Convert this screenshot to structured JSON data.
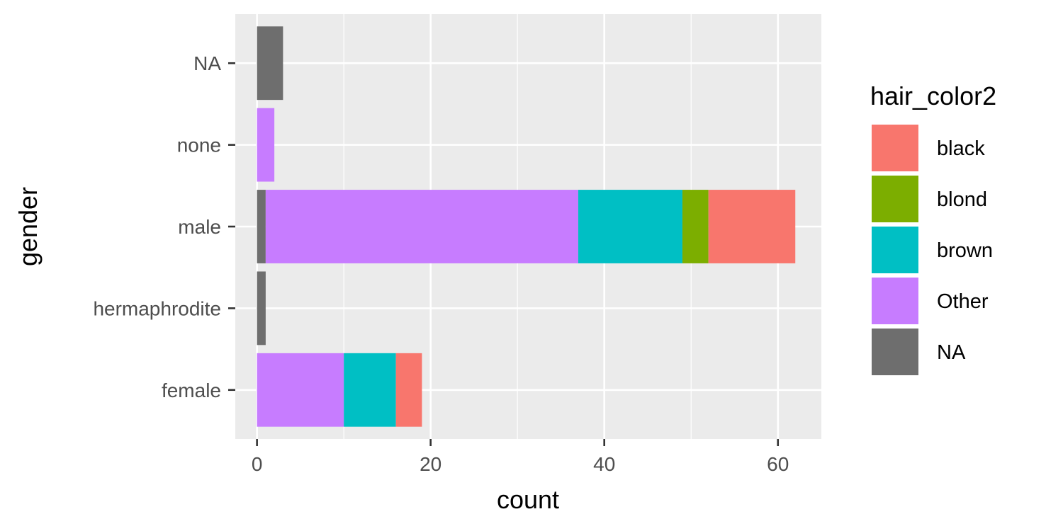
{
  "chart_data": {
    "type": "bar",
    "orientation": "horizontal",
    "stacked": true,
    "categories": [
      "female",
      "hermaphrodite",
      "male",
      "none",
      "NA"
    ],
    "xlabel": "count",
    "ylabel": "gender",
    "xlim": [
      -2.5,
      65
    ],
    "x_ticks": [
      0,
      20,
      40,
      60
    ],
    "grid": true,
    "legend": {
      "title": "hair_color2",
      "position": "right",
      "entries": [
        "black",
        "blond",
        "brown",
        "Other",
        "NA"
      ]
    },
    "stack_order": [
      "NA",
      "Other",
      "brown",
      "blond",
      "black"
    ],
    "series": [
      {
        "name": "black",
        "color": "#F8766D",
        "values": [
          3,
          0,
          10,
          0,
          0
        ]
      },
      {
        "name": "blond",
        "color": "#7CAE00",
        "values": [
          0,
          0,
          3,
          0,
          0
        ]
      },
      {
        "name": "brown",
        "color": "#00BFC4",
        "values": [
          6,
          0,
          12,
          0,
          0
        ]
      },
      {
        "name": "Other",
        "color": "#C77CFF",
        "values": [
          10,
          0,
          36,
          2,
          0
        ]
      },
      {
        "name": "NA",
        "color": "#6E6E6E",
        "values": [
          0,
          1,
          1,
          0,
          3
        ]
      }
    ]
  }
}
